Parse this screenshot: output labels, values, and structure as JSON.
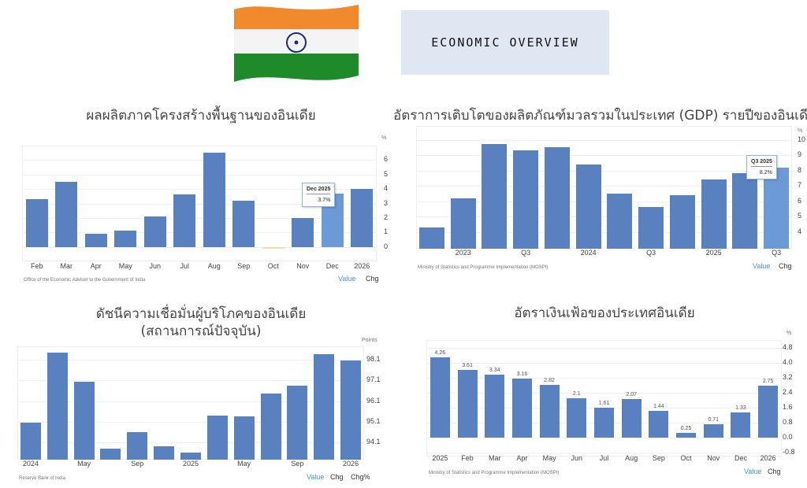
{
  "header": {
    "title": "ECONOMIC OVERVIEW",
    "flag": "india-flag"
  },
  "colors": {
    "bar": "#5a81bf",
    "bar_highlight": "#6b9ad6",
    "negative_bar": "#f3dca6",
    "active_toggle": "#4a90e2",
    "title_box": "#dfe7f2"
  },
  "chart_data": [
    {
      "type": "bar",
      "title": "ผลผลิตภาคโครงสร้างพื้นฐานของอินเดีย",
      "unit": "%",
      "categories": [
        "Feb",
        "Mar",
        "Apr",
        "May",
        "Jun",
        "Jul",
        "Aug",
        "Sep",
        "Oct",
        "Nov",
        "Dec",
        "2026"
      ],
      "values": [
        3.3,
        4.5,
        0.9,
        1.1,
        2.1,
        3.6,
        6.5,
        3.2,
        -0.1,
        2.0,
        3.7,
        4.0
      ],
      "yticks": [
        "0",
        "1",
        "2",
        "3",
        "4",
        "5",
        "6"
      ],
      "ylim": [
        -1,
        7
      ],
      "grid": true,
      "tooltip": {
        "label": "Dec 2025",
        "value": "3.7%"
      },
      "source": "Office of the Economic Adviser to the Government of India",
      "toggles": [
        "Value",
        "Chg"
      ]
    },
    {
      "type": "bar",
      "title": "อัตราการเติบโตของผลิตภัณฑ์มวลรวมในประเทศ (GDP) รายปีของอินเดีย",
      "unit": "%",
      "categories": [
        "",
        "2023",
        "",
        "Q3",
        "",
        "2024",
        "",
        "Q3",
        "",
        "2025",
        "",
        "Q3"
      ],
      "values": [
        4.3,
        6.2,
        9.7,
        9.3,
        9.5,
        8.4,
        6.5,
        5.6,
        6.4,
        7.4,
        7.8,
        8.2
      ],
      "yticks": [
        "4",
        "5",
        "6",
        "7",
        "8",
        "9",
        "10"
      ],
      "ylim": [
        2.9,
        10.9
      ],
      "grid": true,
      "tooltip": {
        "label": "Q3 2025",
        "value": "8.2%"
      },
      "source": "Ministry of Statistics and Programme Implementation (MOSPI)",
      "toggles": [
        "Value",
        "Chg"
      ]
    },
    {
      "type": "bar",
      "title": "ดัชนีความเชื่อมั่นผู้บริโภคของอินเดีย",
      "title_line2": "(สถานการณ์ปัจจุบัน)",
      "unit": "Points",
      "categories": [
        "2024",
        "",
        "May",
        "",
        "Sep",
        "",
        "2025",
        "",
        "May",
        "",
        "Sep",
        "",
        "2026"
      ],
      "values": [
        95.05,
        98.45,
        97.05,
        93.8,
        94.6,
        93.9,
        93.6,
        95.4,
        95.35,
        96.45,
        96.85,
        98.35,
        98.05
      ],
      "yticks": [
        "94.1",
        "95.1",
        "96.1",
        "97.1",
        "98.1"
      ],
      "ylim": [
        93.26,
        98.75
      ],
      "grid": true,
      "source": "Reserve Bank of India",
      "toggles": [
        "Value",
        "Chg",
        "Chg%"
      ]
    },
    {
      "type": "bar",
      "title": "อัตราเงินเฟ้อของประเทศอินเดีย",
      "unit": "%",
      "categories": [
        "2025",
        "Feb",
        "Mar",
        "Apr",
        "May",
        "Jun",
        "Jul",
        "Aug",
        "Sep",
        "Oct",
        "Nov",
        "Dec",
        "2026"
      ],
      "values": [
        4.26,
        3.61,
        3.34,
        3.16,
        2.82,
        2.1,
        1.61,
        2.07,
        1.44,
        0.25,
        0.71,
        1.33,
        2.75
      ],
      "data_labels": [
        "4.26",
        "3.61",
        "3.34",
        "3.16",
        "2.82",
        "2.1",
        "1.61",
        "2.07",
        "1.44",
        "0.25",
        "0.71",
        "1.33",
        "2.75"
      ],
      "yticks": [
        "-0.8",
        "0.0",
        "0.8",
        "1.6",
        "2.4",
        "3.2",
        "4.0",
        "4.8"
      ],
      "ylim": [
        -1.0,
        5.2
      ],
      "grid": true,
      "source": "Ministry of Statistics and Programme Implementation (MOSPI)",
      "toggles": [
        "Value",
        "Chg"
      ]
    }
  ]
}
